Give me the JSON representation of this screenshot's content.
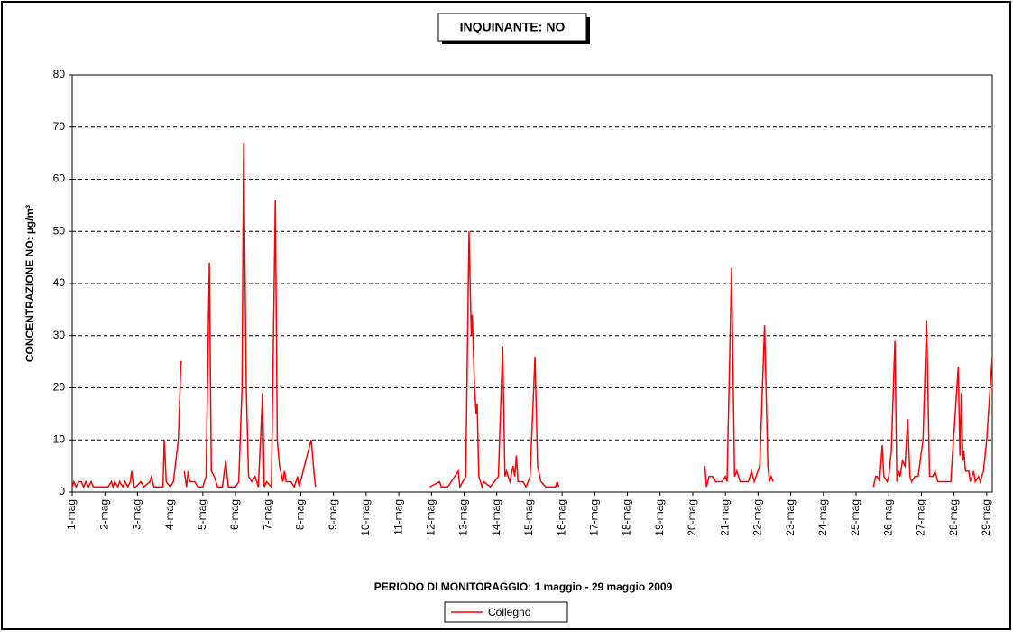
{
  "chart_data": {
    "type": "line",
    "title": "INQUINANTE: NO",
    "xlabel": "PERIODO DI MONITORAGGIO: 1 maggio - 29 maggio 2009",
    "ylabel": "CONCENTRAZIONE NO:  µg/m³",
    "xlim": [
      1,
      29.17
    ],
    "ylim": [
      0,
      80
    ],
    "yticks": [
      0,
      10,
      20,
      30,
      40,
      50,
      60,
      70,
      80
    ],
    "xticks": [
      {
        "value": 1,
        "label": "1-mag"
      },
      {
        "value": 2,
        "label": "2-mag"
      },
      {
        "value": 3,
        "label": "3-mag"
      },
      {
        "value": 4,
        "label": "4-mag"
      },
      {
        "value": 5,
        "label": "5-mag"
      },
      {
        "value": 6,
        "label": "6-mag"
      },
      {
        "value": 7,
        "label": "7-mag"
      },
      {
        "value": 8,
        "label": "8-mag"
      },
      {
        "value": 9,
        "label": "9-mag"
      },
      {
        "value": 10,
        "label": "10-mag"
      },
      {
        "value": 11,
        "label": "11-mag"
      },
      {
        "value": 12,
        "label": "12-mag"
      },
      {
        "value": 13,
        "label": "13-mag"
      },
      {
        "value": 14,
        "label": "14-mag"
      },
      {
        "value": 15,
        "label": "15-mag"
      },
      {
        "value": 16,
        "label": "16-mag"
      },
      {
        "value": 17,
        "label": "17-mag"
      },
      {
        "value": 18,
        "label": "18-mag"
      },
      {
        "value": 19,
        "label": "19-mag"
      },
      {
        "value": 20,
        "label": "20-mag"
      },
      {
        "value": 21,
        "label": "21-mag"
      },
      {
        "value": 22,
        "label": "22-mag"
      },
      {
        "value": 23,
        "label": "23-mag"
      },
      {
        "value": 24,
        "label": "24-mag"
      },
      {
        "value": 25,
        "label": "25-mag"
      },
      {
        "value": 26,
        "label": "26-mag"
      },
      {
        "value": 27,
        "label": "27-mag"
      },
      {
        "value": 28,
        "label": "28-mag"
      },
      {
        "value": 29,
        "label": "29-mag"
      }
    ],
    "grid": true,
    "legend": "bottom",
    "x": [
      1,
      1.05,
      1.12,
      1.2,
      1.28,
      1.35,
      1.42,
      1.5,
      1.58,
      1.65,
      1.75,
      1.9,
      2.1,
      2.2,
      2.25,
      2.3,
      2.4,
      2.45,
      2.55,
      2.62,
      2.7,
      2.78,
      2.82,
      2.88,
      2.95,
      3.1,
      3.2,
      3.38,
      3.43,
      3.5,
      3.6,
      3.78,
      3.82,
      3.88,
      4.0,
      4.1,
      4.25,
      4.33,
      4.36,
      4.4,
      4.43,
      4.5,
      4.55,
      4.6,
      4.75,
      4.85,
      5.0,
      5.1,
      5.2,
      5.26,
      5.35,
      5.45,
      5.6,
      5.7,
      5.78,
      6.0,
      6.1,
      6.2,
      6.25,
      6.33,
      6.4,
      6.5,
      6.6,
      6.7,
      6.83,
      6.88,
      6.95,
      7.1,
      7.22,
      7.28,
      7.35,
      7.45,
      7.5,
      7.55,
      7.7,
      7.8,
      7.9,
      7.95,
      8.15,
      8.32,
      8.4,
      8.45,
      10,
      11.95,
      12.25,
      12.3,
      12.5,
      12.82,
      12.87,
      13.05,
      13.15,
      13.22,
      13.25,
      13.32,
      13.37,
      13.4,
      13.45,
      13.55,
      13.6,
      13.8,
      14.05,
      14.18,
      14.25,
      14.3,
      14.4,
      14.5,
      14.55,
      14.6,
      14.65,
      14.8,
      14.9,
      15.02,
      15.17,
      15.25,
      15.35,
      15.5,
      15.8,
      15.85,
      15.9,
      18,
      20.37,
      20.42,
      20.5,
      20.6,
      20.7,
      20.9,
      21.0,
      21.05,
      21.19,
      21.28,
      21.35,
      21.45,
      21.7,
      21.8,
      21.88,
      22.05,
      22.2,
      22.3,
      22.35,
      22.4,
      22.46,
      24,
      25.53,
      25.6,
      25.65,
      25.72,
      25.8,
      25.85,
      25.95,
      26.0,
      26.08,
      26.19,
      26.25,
      26.3,
      26.35,
      26.42,
      26.5,
      26.58,
      26.65,
      26.7,
      26.8,
      26.9,
      27.05,
      27.16,
      27.25,
      27.35,
      27.42,
      27.5,
      27.6,
      27.9,
      28.13,
      28.18,
      28.22,
      28.27,
      28.3,
      28.35,
      28.45,
      28.5,
      28.6,
      28.65,
      28.75,
      28.8,
      28.9,
      29.0,
      29.17
    ],
    "series": [
      {
        "name": "Collegno",
        "color": "#ff0000",
        "values": [
          1,
          2,
          1,
          2,
          2,
          1,
          2,
          1,
          2,
          1,
          1,
          1,
          1,
          2,
          1,
          2,
          1,
          2,
          1,
          2,
          1,
          2,
          4,
          1,
          1,
          2,
          1,
          2,
          3,
          1,
          1,
          1,
          10,
          2,
          1,
          2,
          10,
          25,
          25,
          null,
          4,
          1,
          4,
          2,
          2,
          1,
          1,
          3,
          44,
          4,
          3,
          1,
          1,
          6,
          1,
          1,
          2,
          20,
          67,
          20,
          3,
          2,
          3,
          1,
          19,
          1,
          2,
          1,
          56,
          10,
          5,
          2,
          4,
          2,
          2,
          1,
          3,
          1,
          6,
          10,
          4,
          1,
          null,
          1,
          2,
          1,
          1,
          4,
          1,
          3,
          50,
          30,
          34,
          20,
          15,
          17,
          3,
          1,
          2,
          1,
          3,
          28,
          3,
          4,
          2,
          5,
          3,
          7,
          2,
          2,
          1,
          3,
          26,
          5,
          2,
          1,
          1,
          2,
          1,
          null,
          5,
          1,
          3,
          3,
          2,
          2,
          3,
          2,
          43,
          3,
          4,
          2,
          2,
          4,
          2,
          5,
          32,
          5,
          2,
          3,
          2,
          null,
          1,
          3,
          3,
          2,
          9,
          3,
          2,
          3,
          8,
          29,
          2,
          4,
          3,
          6,
          5,
          14,
          3,
          2,
          3,
          3,
          10,
          33,
          3,
          3,
          4,
          2,
          2,
          2,
          24,
          7,
          19,
          6,
          8,
          4,
          4,
          2,
          4,
          2,
          3,
          2,
          4,
          10,
          26
        ]
      }
    ]
  }
}
